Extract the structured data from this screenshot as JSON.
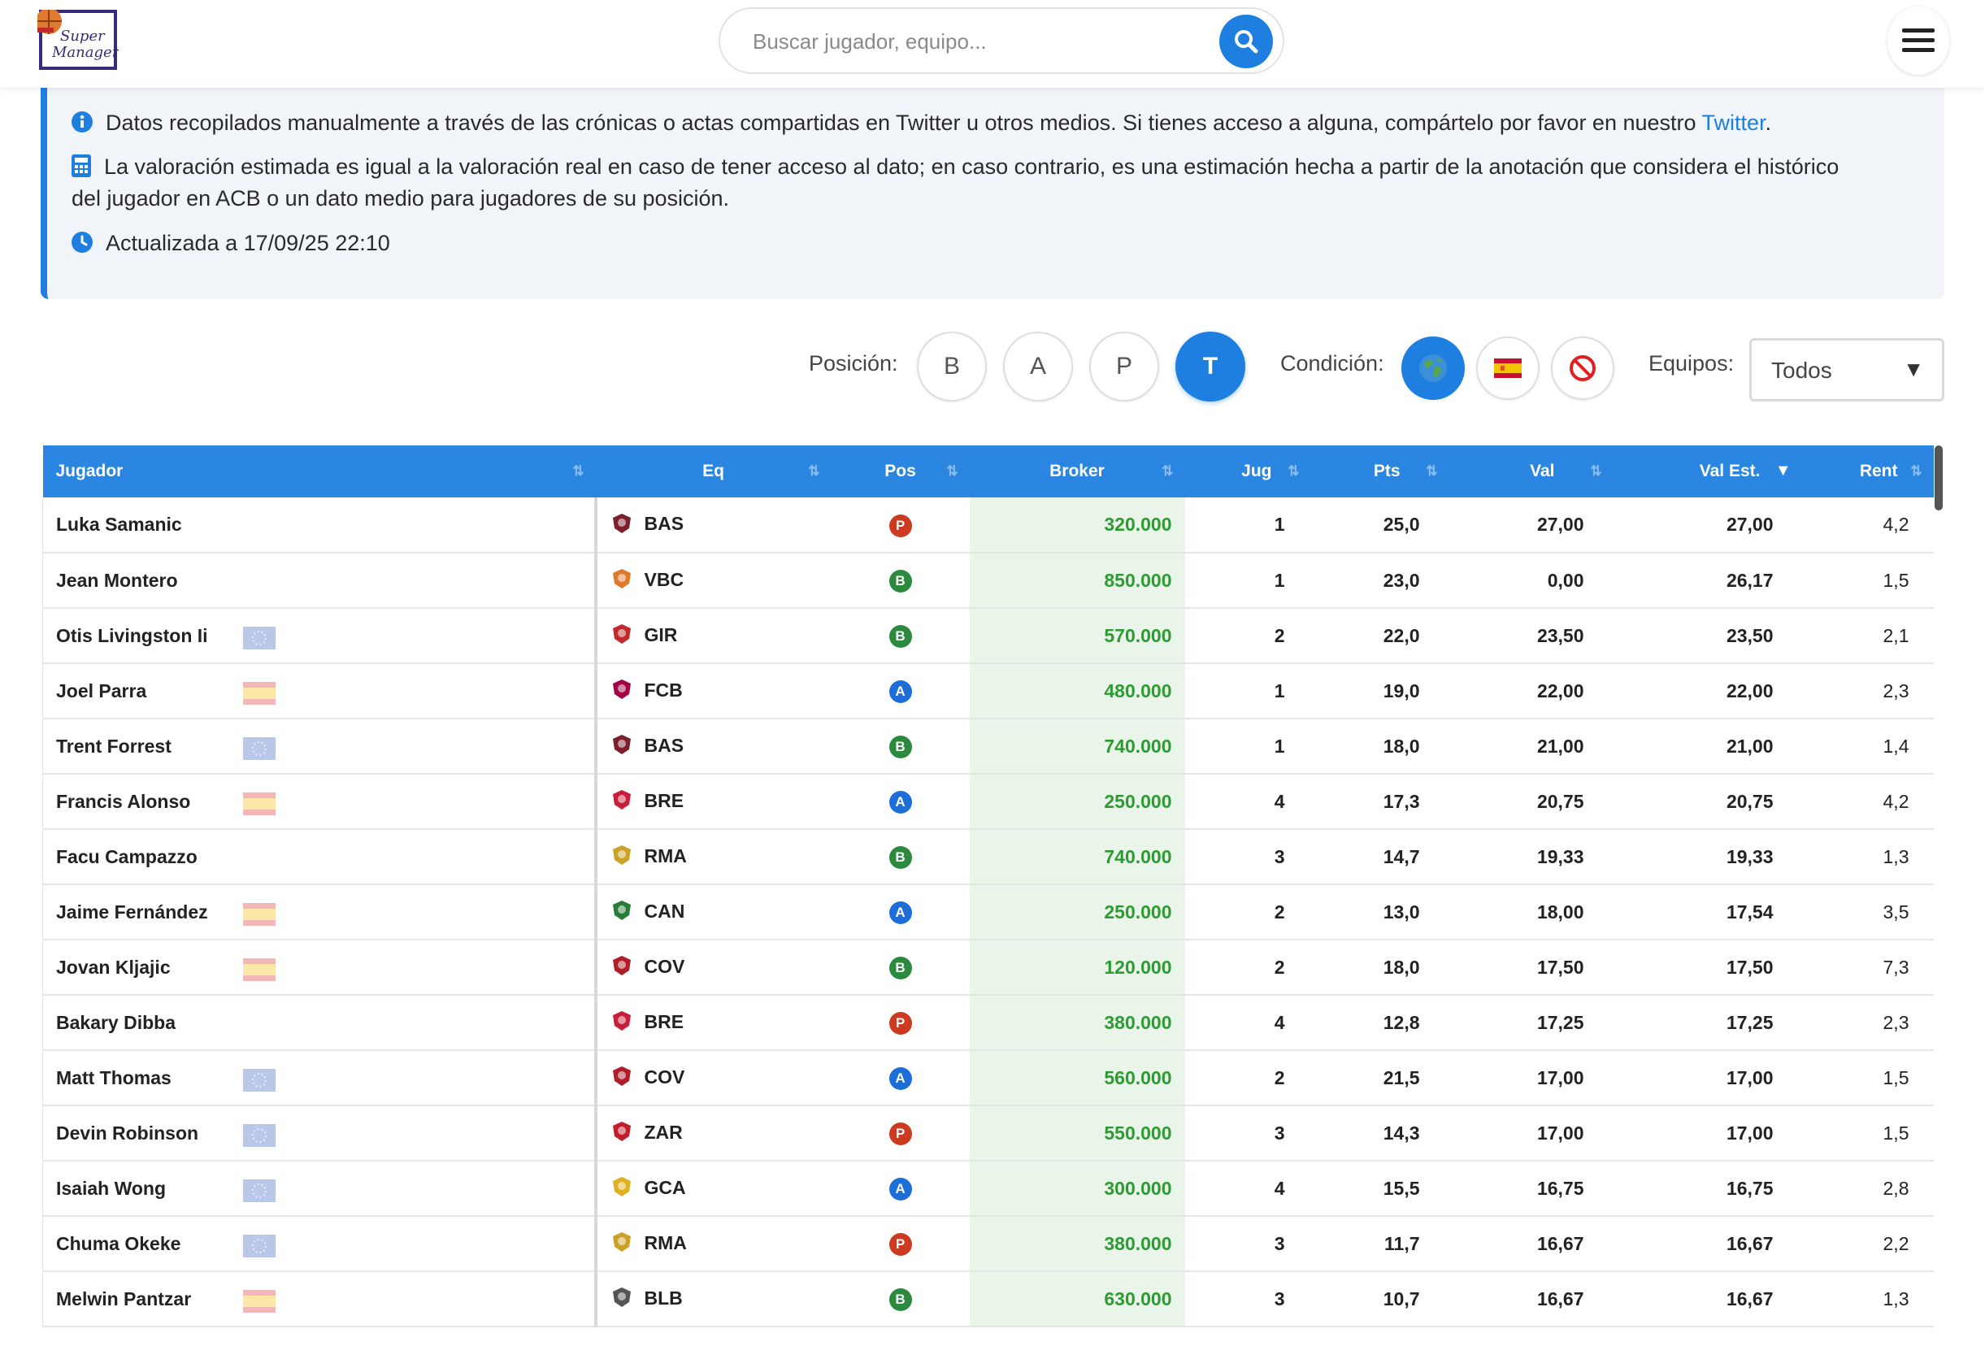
{
  "header": {
    "logo_text": "Super Manager",
    "search_placeholder": "Buscar jugador, equipo...",
    "search_icon": "search-icon",
    "menu_icon": "hamburger-icon"
  },
  "info": {
    "line1_text": "Datos recopilados manualmente a través de las crónicas o actas compartidas en Twitter u otros medios. Si tienes acceso a alguna, compártelo por favor en nuestro ",
    "line1_link": "Twitter",
    "line1_end": ".",
    "line2_a": "La valoración estimada es igual a la valoración real en caso de tener acceso al dato; en caso contrario, es una estimación hecha a partir de la anotación que considera el histórico",
    "line2_b": "del jugador en ACB o un dato medio para jugadores de su posición.",
    "line3": "Actualizada a 17/09/25 22:10"
  },
  "filters": {
    "position_label": "Posición:",
    "positions": [
      "B",
      "A",
      "P",
      "T"
    ],
    "position_selected": "T",
    "condition_label": "Condición:",
    "conditions": [
      "globe-icon",
      "spain-flag-icon",
      "no-entry-icon"
    ],
    "condition_selected": "globe-icon",
    "teams_label": "Equipos:",
    "teams_value": "Todos"
  },
  "colors": {
    "accent": "#1e7fe0",
    "header_bg": "#2a86e0",
    "broker_text": "#2e9a34",
    "broker_bg": "#eaf5ea",
    "pos_P": "#cc3a22",
    "pos_B": "#2b8a3e",
    "pos_A": "#1e6ed8"
  },
  "table": {
    "columns": [
      "Jugador",
      "Eq",
      "Pos",
      "Broker",
      "Jug",
      "Pts",
      "Val",
      "Val Est.",
      "Rent"
    ],
    "sorted_column": "Val Est.",
    "rows": [
      {
        "player": "Luka Samanic",
        "flag": "",
        "team": "BAS",
        "pos": "P",
        "broker": "320.000",
        "jug": "1",
        "pts": "25,0",
        "val": "27,00",
        "val_est": "27,00",
        "rent": "4,2"
      },
      {
        "player": "Jean Montero",
        "flag": "",
        "team": "VBC",
        "pos": "B",
        "broker": "850.000",
        "jug": "1",
        "pts": "23,0",
        "val": "0,00",
        "val_est": "26,17",
        "rent": "1,5"
      },
      {
        "player": "Otis Livingston Ii",
        "flag": "eu",
        "team": "GIR",
        "pos": "B",
        "broker": "570.000",
        "jug": "2",
        "pts": "22,0",
        "val": "23,50",
        "val_est": "23,50",
        "rent": "2,1"
      },
      {
        "player": "Joel Parra",
        "flag": "es",
        "team": "FCB",
        "pos": "A",
        "broker": "480.000",
        "jug": "1",
        "pts": "19,0",
        "val": "22,00",
        "val_est": "22,00",
        "rent": "2,3"
      },
      {
        "player": "Trent Forrest",
        "flag": "eu",
        "team": "BAS",
        "pos": "B",
        "broker": "740.000",
        "jug": "1",
        "pts": "18,0",
        "val": "21,00",
        "val_est": "21,00",
        "rent": "1,4"
      },
      {
        "player": "Francis Alonso",
        "flag": "es",
        "team": "BRE",
        "pos": "A",
        "broker": "250.000",
        "jug": "4",
        "pts": "17,3",
        "val": "20,75",
        "val_est": "20,75",
        "rent": "4,2"
      },
      {
        "player": "Facu Campazzo",
        "flag": "",
        "team": "RMA",
        "pos": "B",
        "broker": "740.000",
        "jug": "3",
        "pts": "14,7",
        "val": "19,33",
        "val_est": "19,33",
        "rent": "1,3"
      },
      {
        "player": "Jaime Fernández",
        "flag": "es",
        "team": "CAN",
        "pos": "A",
        "broker": "250.000",
        "jug": "2",
        "pts": "13,0",
        "val": "18,00",
        "val_est": "17,54",
        "rent": "3,5"
      },
      {
        "player": "Jovan Kljajic",
        "flag": "es",
        "team": "COV",
        "pos": "B",
        "broker": "120.000",
        "jug": "2",
        "pts": "18,0",
        "val": "17,50",
        "val_est": "17,50",
        "rent": "7,3"
      },
      {
        "player": "Bakary Dibba",
        "flag": "",
        "team": "BRE",
        "pos": "P",
        "broker": "380.000",
        "jug": "4",
        "pts": "12,8",
        "val": "17,25",
        "val_est": "17,25",
        "rent": "2,3"
      },
      {
        "player": "Matt Thomas",
        "flag": "eu",
        "team": "COV",
        "pos": "A",
        "broker": "560.000",
        "jug": "2",
        "pts": "21,5",
        "val": "17,00",
        "val_est": "17,00",
        "rent": "1,5"
      },
      {
        "player": "Devin Robinson",
        "flag": "eu",
        "team": "ZAR",
        "pos": "P",
        "broker": "550.000",
        "jug": "3",
        "pts": "14,3",
        "val": "17,00",
        "val_est": "17,00",
        "rent": "1,5"
      },
      {
        "player": "Isaiah Wong",
        "flag": "eu",
        "team": "GCA",
        "pos": "A",
        "broker": "300.000",
        "jug": "4",
        "pts": "15,5",
        "val": "16,75",
        "val_est": "16,75",
        "rent": "2,8"
      },
      {
        "player": "Chuma Okeke",
        "flag": "eu",
        "team": "RMA",
        "pos": "P",
        "broker": "380.000",
        "jug": "3",
        "pts": "11,7",
        "val": "16,67",
        "val_est": "16,67",
        "rent": "2,2"
      },
      {
        "player": "Melwin Pantzar",
        "flag": "es",
        "team": "BLB",
        "pos": "B",
        "broker": "630.000",
        "jug": "3",
        "pts": "10,7",
        "val": "16,67",
        "val_est": "16,67",
        "rent": "1,3"
      }
    ]
  }
}
